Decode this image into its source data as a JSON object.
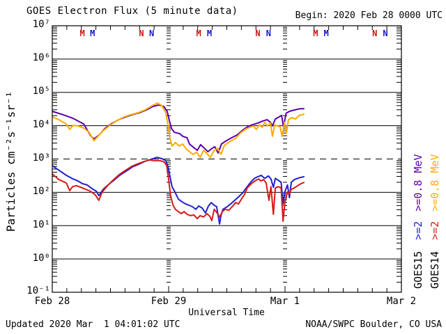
{
  "header": {
    "title": "GOES Electron Flux (5 minute data)",
    "begin": "Begin: 2020 Feb 28 0000 UTC"
  },
  "footer": {
    "updated": "Updated 2020 Mar  1 04:01:02 UTC",
    "source": "NOAA/SWPC Boulder, CO USA"
  },
  "y_axis": {
    "label": "Particles cm⁻²s⁻¹sr⁻¹",
    "tick_labels": [
      "10⁷",
      "10⁶",
      "10⁵",
      "10⁴",
      "10³",
      "10²",
      "10¹",
      "10⁰",
      "10⁻¹"
    ]
  },
  "x_axis": {
    "label": "Universal Time",
    "tick_labels": [
      "Feb 28",
      "Feb 29",
      "Mar 1",
      "Mar 2"
    ]
  },
  "legend": {
    "goes15": {
      "satellite": "GOES15",
      "ge2": ">=2",
      "ge08": ">=0.8",
      "mev": "MeV",
      "satellite_color": "#000000",
      "ge2_color": "#2020cf",
      "ge08_color": "#5a00a8"
    },
    "goes14": {
      "satellite": "GOES14",
      "ge2": ">=2",
      "ge08": ">=0.8",
      "mev": "MeV",
      "satellite_color": "#000000",
      "ge2_color": "#d81818",
      "ge08_color": "#ffaa00"
    }
  },
  "eclipse_markers": [
    {
      "label": "M",
      "hour": 6.2,
      "color": "#cc1111"
    },
    {
      "label": "M",
      "hour": 8.3,
      "color": "#1414c8"
    },
    {
      "label": "N",
      "hour": 18.4,
      "color": "#cc1111"
    },
    {
      "label": "N",
      "hour": 20.5,
      "color": "#1414c8"
    },
    {
      "label": "M",
      "hour": 30.2,
      "color": "#cc1111"
    },
    {
      "label": "M",
      "hour": 32.4,
      "color": "#1414c8"
    },
    {
      "label": "N",
      "hour": 42.4,
      "color": "#cc1111"
    },
    {
      "label": "N",
      "hour": 44.6,
      "color": "#1414c8"
    },
    {
      "label": "M",
      "hour": 54.3,
      "color": "#cc1111"
    },
    {
      "label": "M",
      "hour": 56.5,
      "color": "#1414c8"
    },
    {
      "label": "N",
      "hour": 66.5,
      "color": "#cc1111"
    },
    {
      "label": "N",
      "hour": 68.7,
      "color": "#1414c8"
    }
  ],
  "chart_data": {
    "type": "line",
    "title": "GOES Electron Flux (5 minute data)",
    "xlabel": "Universal Time",
    "ylabel": "Particles cm⁻²s⁻¹sr⁻¹",
    "x_unit": "hours since 2020 Feb 28 0000 UTC",
    "x_ticks": [
      "Feb 28",
      "Feb 29",
      "Mar 1",
      "Mar 2"
    ],
    "x_tick_hours": [
      0,
      24,
      48,
      72
    ],
    "xlim": [
      0,
      72
    ],
    "y_scale": "log10",
    "ylim_log10": [
      -1,
      7
    ],
    "threshold_log10": 3,
    "day_boundary_hours": [
      24,
      48
    ],
    "legend_position": "right-outside-rotated",
    "series": [
      {
        "name": "GOES15 >=0.8 MeV",
        "color": "#5a00a8",
        "points_hours_log10flux": [
          [
            0,
            4.43
          ],
          [
            2.2,
            4.33
          ],
          [
            4.3,
            4.22
          ],
          [
            6.5,
            4.05
          ],
          [
            7.9,
            3.7
          ],
          [
            8.6,
            3.6
          ],
          [
            9.8,
            3.74
          ],
          [
            10.8,
            3.91
          ],
          [
            12.2,
            4.06
          ],
          [
            13.7,
            4.18
          ],
          [
            15.1,
            4.26
          ],
          [
            16.5,
            4.33
          ],
          [
            18,
            4.39
          ],
          [
            19.4,
            4.47
          ],
          [
            20.8,
            4.58
          ],
          [
            22,
            4.62
          ],
          [
            23,
            4.58
          ],
          [
            23.7,
            4.43
          ],
          [
            24.2,
            4.12
          ],
          [
            24.6,
            3.91
          ],
          [
            25.2,
            3.8
          ],
          [
            26.3,
            3.76
          ],
          [
            26.9,
            3.68
          ],
          [
            27.8,
            3.64
          ],
          [
            28.3,
            3.45
          ],
          [
            29.2,
            3.34
          ],
          [
            29.9,
            3.26
          ],
          [
            30.6,
            3.43
          ],
          [
            31.4,
            3.32
          ],
          [
            32.1,
            3.22
          ],
          [
            32.8,
            3.3
          ],
          [
            33.5,
            3.37
          ],
          [
            34.2,
            3.18
          ],
          [
            34.9,
            3.45
          ],
          [
            35.9,
            3.55
          ],
          [
            37,
            3.64
          ],
          [
            38.1,
            3.72
          ],
          [
            39.3,
            3.87
          ],
          [
            40.3,
            3.97
          ],
          [
            41.3,
            4.03
          ],
          [
            42.4,
            4.08
          ],
          [
            43.4,
            4.14
          ],
          [
            44.3,
            4.18
          ],
          [
            45,
            4.1
          ],
          [
            45.4,
            3.99
          ],
          [
            46,
            4.2
          ],
          [
            46.7,
            4.26
          ],
          [
            47.3,
            4.31
          ],
          [
            47.7,
            3.95
          ],
          [
            48.2,
            4.37
          ],
          [
            48.9,
            4.43
          ],
          [
            49.9,
            4.47
          ],
          [
            51.1,
            4.51
          ],
          [
            52,
            4.51
          ]
        ]
      },
      {
        "name": "GOES14 >=0.8 MeV",
        "color": "#ffaa00",
        "points_hours_log10flux": [
          [
            0,
            4.26
          ],
          [
            1.4,
            4.18
          ],
          [
            2.9,
            4.05
          ],
          [
            3.6,
            3.89
          ],
          [
            4.3,
            4.01
          ],
          [
            5.3,
            3.99
          ],
          [
            6.5,
            3.93
          ],
          [
            7.6,
            3.8
          ],
          [
            8.6,
            3.55
          ],
          [
            9.3,
            3.66
          ],
          [
            10.5,
            3.85
          ],
          [
            11.9,
            4.01
          ],
          [
            13.4,
            4.16
          ],
          [
            14.8,
            4.26
          ],
          [
            16.2,
            4.33
          ],
          [
            17.7,
            4.39
          ],
          [
            19.1,
            4.47
          ],
          [
            20.6,
            4.6
          ],
          [
            21.7,
            4.68
          ],
          [
            22.6,
            4.6
          ],
          [
            23.4,
            4.39
          ],
          [
            23.9,
            4.01
          ],
          [
            24.3,
            3.6
          ],
          [
            24.7,
            3.39
          ],
          [
            25.4,
            3.49
          ],
          [
            26.2,
            3.39
          ],
          [
            26.9,
            3.45
          ],
          [
            27.6,
            3.3
          ],
          [
            28.3,
            3.22
          ],
          [
            29,
            3.14
          ],
          [
            29.8,
            3.2
          ],
          [
            30.5,
            3.05
          ],
          [
            31.2,
            3.26
          ],
          [
            31.9,
            3.16
          ],
          [
            32.6,
            3.05
          ],
          [
            33.4,
            3.26
          ],
          [
            34.1,
            3.32
          ],
          [
            34.8,
            3.14
          ],
          [
            35.5,
            3.41
          ],
          [
            36.7,
            3.53
          ],
          [
            37.8,
            3.62
          ],
          [
            38.8,
            3.78
          ],
          [
            39.8,
            3.89
          ],
          [
            40.7,
            3.95
          ],
          [
            41.5,
            3.99
          ],
          [
            42.1,
            3.89
          ],
          [
            42.7,
            4.03
          ],
          [
            43.3,
            3.95
          ],
          [
            43.8,
            4.1
          ],
          [
            44.4,
            3.99
          ],
          [
            45,
            4.08
          ],
          [
            45.4,
            3.68
          ],
          [
            45.9,
            4.03
          ],
          [
            46.4,
            3.99
          ],
          [
            47,
            3.97
          ],
          [
            47.4,
            3.68
          ],
          [
            47.9,
            4.1
          ],
          [
            48.3,
            3.78
          ],
          [
            48.7,
            4.18
          ],
          [
            49.4,
            4.24
          ],
          [
            50.2,
            4.2
          ],
          [
            50.9,
            4.31
          ],
          [
            51.6,
            4.33
          ],
          [
            52,
            4.35
          ]
        ]
      },
      {
        "name": "GOES15 >=2 MeV",
        "color": "#2020cf",
        "points_hours_log10flux": [
          [
            0,
            2.8
          ],
          [
            1.4,
            2.66
          ],
          [
            2.9,
            2.51
          ],
          [
            4.3,
            2.4
          ],
          [
            5.3,
            2.34
          ],
          [
            6.2,
            2.26
          ],
          [
            7.2,
            2.22
          ],
          [
            8.2,
            2.11
          ],
          [
            9.1,
            2.03
          ],
          [
            9.6,
            1.9
          ],
          [
            10.5,
            2.09
          ],
          [
            11.5,
            2.22
          ],
          [
            12.7,
            2.36
          ],
          [
            13.9,
            2.51
          ],
          [
            15.2,
            2.63
          ],
          [
            16.5,
            2.76
          ],
          [
            17.8,
            2.84
          ],
          [
            19.1,
            2.93
          ],
          [
            20.4,
            2.99
          ],
          [
            21.6,
            3.05
          ],
          [
            22.6,
            3.01
          ],
          [
            23.4,
            2.95
          ],
          [
            23.9,
            2.76
          ],
          [
            24.3,
            2.45
          ],
          [
            24.7,
            2.17
          ],
          [
            25.3,
            2.01
          ],
          [
            26,
            1.8
          ],
          [
            26.7,
            1.72
          ],
          [
            27.5,
            1.65
          ],
          [
            28.2,
            1.61
          ],
          [
            28.9,
            1.57
          ],
          [
            29.6,
            1.49
          ],
          [
            30.2,
            1.59
          ],
          [
            30.9,
            1.53
          ],
          [
            31.6,
            1.38
          ],
          [
            32.2,
            1.59
          ],
          [
            32.8,
            1.69
          ],
          [
            33.4,
            1.61
          ],
          [
            33.9,
            1.57
          ],
          [
            34.5,
            1.05
          ],
          [
            34.8,
            1.3
          ],
          [
            35.2,
            1.49
          ],
          [
            35.9,
            1.55
          ],
          [
            36.7,
            1.64
          ],
          [
            37.5,
            1.74
          ],
          [
            38.4,
            1.86
          ],
          [
            39.3,
            1.99
          ],
          [
            40.1,
            2.15
          ],
          [
            41,
            2.32
          ],
          [
            41.7,
            2.42
          ],
          [
            42.4,
            2.47
          ],
          [
            43.1,
            2.51
          ],
          [
            43.8,
            2.42
          ],
          [
            44.6,
            2.49
          ],
          [
            45.1,
            2.4
          ],
          [
            45.6,
            2.15
          ],
          [
            46,
            2.42
          ],
          [
            46.6,
            2.36
          ],
          [
            47.2,
            2.3
          ],
          [
            47.6,
            1.65
          ],
          [
            48,
            2.03
          ],
          [
            48.5,
            2.22
          ],
          [
            48.9,
            1.84
          ],
          [
            49.3,
            2.3
          ],
          [
            49.9,
            2.38
          ],
          [
            50.6,
            2.42
          ],
          [
            51.3,
            2.45
          ],
          [
            52,
            2.47
          ]
        ]
      },
      {
        "name": "GOES14 >=2 MeV",
        "color": "#d81818",
        "points_hours_log10flux": [
          [
            0,
            2.55
          ],
          [
            1.4,
            2.38
          ],
          [
            2.9,
            2.28
          ],
          [
            3.6,
            2.05
          ],
          [
            4.2,
            2.17
          ],
          [
            5,
            2.2
          ],
          [
            5.9,
            2.15
          ],
          [
            6.9,
            2.09
          ],
          [
            7.9,
            2.03
          ],
          [
            8.9,
            1.92
          ],
          [
            9.6,
            1.76
          ],
          [
            10.3,
            2.01
          ],
          [
            11.4,
            2.2
          ],
          [
            12.5,
            2.36
          ],
          [
            13.8,
            2.53
          ],
          [
            15.1,
            2.66
          ],
          [
            16.4,
            2.78
          ],
          [
            17.7,
            2.86
          ],
          [
            19,
            2.93
          ],
          [
            20,
            2.97
          ],
          [
            21.1,
            2.95
          ],
          [
            22.3,
            2.95
          ],
          [
            23.1,
            2.91
          ],
          [
            23.6,
            2.8
          ],
          [
            24,
            2.38
          ],
          [
            24.4,
            1.9
          ],
          [
            24.9,
            1.61
          ],
          [
            25.4,
            1.49
          ],
          [
            26,
            1.42
          ],
          [
            26.6,
            1.36
          ],
          [
            27.2,
            1.42
          ],
          [
            27.8,
            1.34
          ],
          [
            28.5,
            1.3
          ],
          [
            29.2,
            1.32
          ],
          [
            29.9,
            1.21
          ],
          [
            30.5,
            1.3
          ],
          [
            31.2,
            1.26
          ],
          [
            31.9,
            1.36
          ],
          [
            32.5,
            1.28
          ],
          [
            32.9,
            1.15
          ],
          [
            33.4,
            1.49
          ],
          [
            33.9,
            1.4
          ],
          [
            34.5,
            1.26
          ],
          [
            35.1,
            1.42
          ],
          [
            35.6,
            1.49
          ],
          [
            36.4,
            1.46
          ],
          [
            37.1,
            1.57
          ],
          [
            37.8,
            1.69
          ],
          [
            38.4,
            1.65
          ],
          [
            39.1,
            1.82
          ],
          [
            39.7,
            1.95
          ],
          [
            40.2,
            2.13
          ],
          [
            40.8,
            2.22
          ],
          [
            41.4,
            2.3
          ],
          [
            42,
            2.36
          ],
          [
            42.6,
            2.4
          ],
          [
            43,
            2.34
          ],
          [
            43.6,
            2.38
          ],
          [
            44.1,
            2.28
          ],
          [
            44.7,
            1.76
          ],
          [
            45.1,
            2.17
          ],
          [
            45.6,
            1.34
          ],
          [
            46,
            2.13
          ],
          [
            46.6,
            2.17
          ],
          [
            47.2,
            2.13
          ],
          [
            47.6,
            1.13
          ],
          [
            48,
            1.72
          ],
          [
            48.5,
            2.01
          ],
          [
            48.9,
            1.95
          ],
          [
            49.3,
            2.09
          ],
          [
            49.9,
            2.13
          ],
          [
            50.6,
            2.2
          ],
          [
            51.3,
            2.26
          ],
          [
            52,
            2.3
          ]
        ]
      }
    ]
  }
}
